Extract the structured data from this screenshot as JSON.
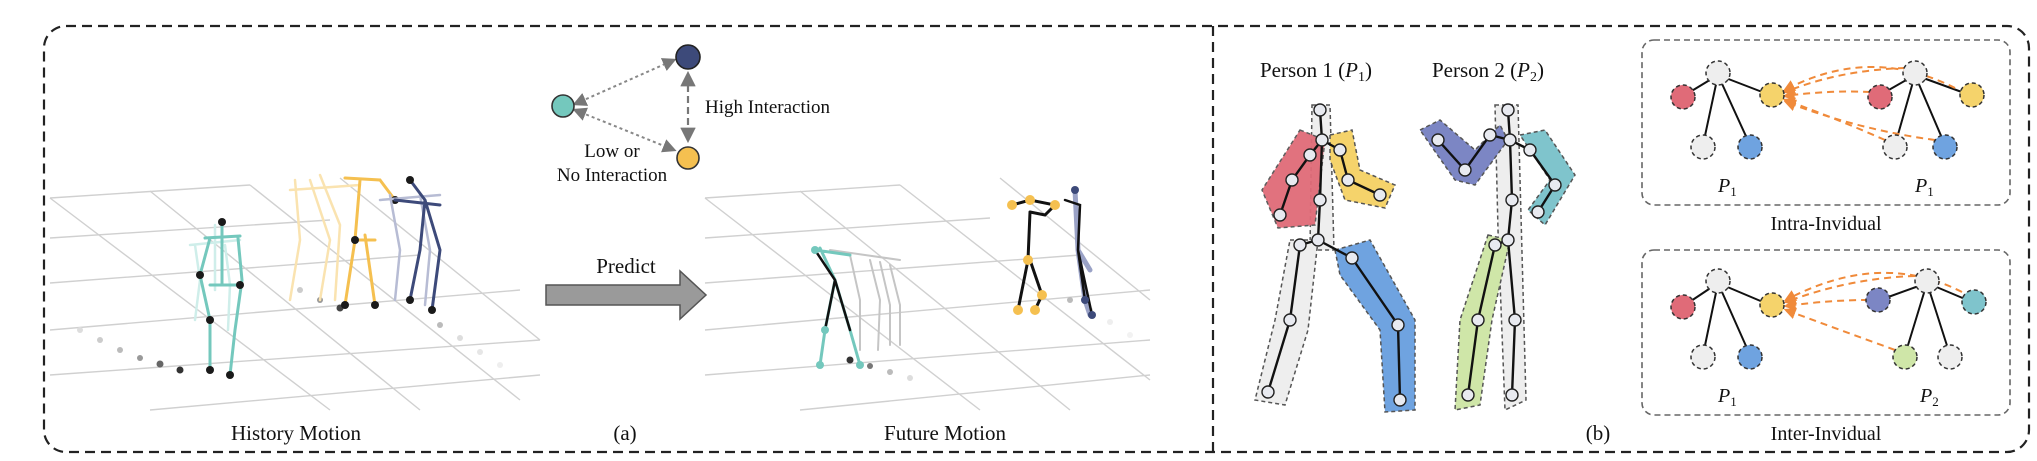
{
  "panel_a": {
    "history_label": "History Motion",
    "future_label": "Future Motion",
    "caption": "(a)",
    "predict_label": "Predict",
    "high_interaction": "High Interaction",
    "low_interaction_line1": "Low or",
    "low_interaction_line2": "No Interaction",
    "colors": {
      "teal": "#74c8bd",
      "yellow": "#f5c050",
      "navy": "#3d4a7a",
      "arrow": "#9a9a9a"
    }
  },
  "panel_b": {
    "caption": "(b)",
    "person1_prefix": "Person 1 (",
    "person1_sym": "P",
    "person1_sub": "1",
    "person1_suffix": ")",
    "person2_prefix": "Person 2  (",
    "person2_sym": "P",
    "person2_sub": "2",
    "person2_suffix": ")",
    "intra_label": "Intra-Invidual",
    "inter_label": "Inter-Invidual",
    "p_sym": "P",
    "sub1": "1",
    "sub2": "2",
    "colors": {
      "red": "#e06b78",
      "yellow": "#f5d36b",
      "blue": "#6fa3e0",
      "navy": "#7c86c4",
      "teal": "#7fc4cc",
      "green": "#cfe6a8",
      "gray": "#eeeeee",
      "edge": "#f08a3a"
    }
  }
}
